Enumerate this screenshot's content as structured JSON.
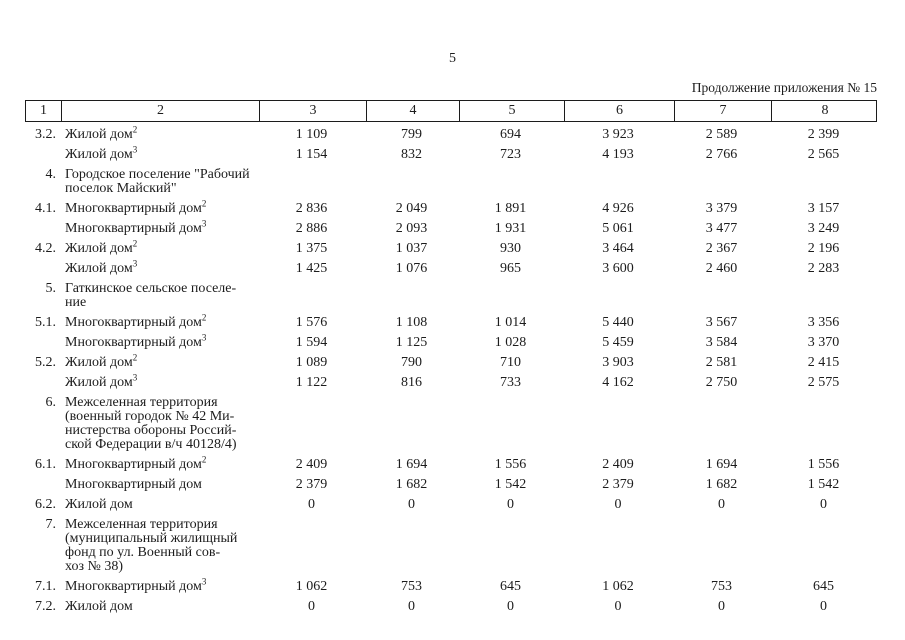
{
  "page": {
    "number": "5",
    "continuation_label": "Продолжение приложения № 15"
  },
  "table": {
    "header_columns": [
      "1",
      "2",
      "3",
      "4",
      "5",
      "6",
      "7",
      "8"
    ],
    "rows": [
      {
        "num": "3.2.",
        "label": "Жилой дом",
        "sup": "2",
        "values": [
          "1 109",
          "799",
          "694",
          "3 923",
          "2 589",
          "2 399"
        ]
      },
      {
        "num": "",
        "label": "Жилой дом",
        "sup": "3",
        "values": [
          "1 154",
          "832",
          "723",
          "4 193",
          "2 766",
          "2 565"
        ]
      },
      {
        "num": "4.",
        "label": "Городское поселение \"Рабочий\nпоселок Майский\"",
        "sup": "",
        "values": []
      },
      {
        "num": "4.1.",
        "label": "Многоквартирный дом",
        "sup": "2",
        "values": [
          "2 836",
          "2 049",
          "1 891",
          "4 926",
          "3 379",
          "3 157"
        ]
      },
      {
        "num": "",
        "label": "Многоквартирный дом",
        "sup": "3",
        "values": [
          "2 886",
          "2 093",
          "1 931",
          "5 061",
          "3 477",
          "3 249"
        ]
      },
      {
        "num": "4.2.",
        "label": "Жилой дом",
        "sup": "2",
        "values": [
          "1 375",
          "1 037",
          "930",
          "3 464",
          "2 367",
          "2 196"
        ]
      },
      {
        "num": "",
        "label": "Жилой дом",
        "sup": "3",
        "values": [
          "1 425",
          "1 076",
          "965",
          "3 600",
          "2 460",
          "2 283"
        ]
      },
      {
        "num": "5.",
        "label": "Гаткинское сельское поселе-\nние",
        "sup": "",
        "values": []
      },
      {
        "num": "5.1.",
        "label": "Многоквартирный дом",
        "sup": "2",
        "values": [
          "1 576",
          "1 108",
          "1 014",
          "5 440",
          "3 567",
          "3 356"
        ]
      },
      {
        "num": "",
        "label": "Многоквартирный дом",
        "sup": "3",
        "values": [
          "1 594",
          "1 125",
          "1 028",
          "5 459",
          "3 584",
          "3 370"
        ]
      },
      {
        "num": "5.2.",
        "label": "Жилой дом",
        "sup": "2",
        "values": [
          "1 089",
          "790",
          "710",
          "3 903",
          "2 581",
          "2 415"
        ]
      },
      {
        "num": "",
        "label": "Жилой дом",
        "sup": "3",
        "values": [
          "1 122",
          "816",
          "733",
          "4 162",
          "2 750",
          "2 575"
        ]
      },
      {
        "num": "6.",
        "label": "Межселенная территория\n(военный городок № 42 Ми-\nнистерства обороны Россий-\nской Федерации в/ч 40128/4)",
        "sup": "",
        "values": []
      },
      {
        "num": "6.1.",
        "label": "Многоквартирный дом",
        "sup": "2",
        "values": [
          "2 409",
          "1 694",
          "1 556",
          "2 409",
          "1 694",
          "1 556"
        ]
      },
      {
        "num": "",
        "label": "Многоквартирный дом",
        "sup": "",
        "values": [
          "2 379",
          "1 682",
          "1 542",
          "2 379",
          "1 682",
          "1 542"
        ]
      },
      {
        "num": "6.2.",
        "label": "Жилой дом",
        "sup": "",
        "values": [
          "0",
          "0",
          "0",
          "0",
          "0",
          "0"
        ]
      },
      {
        "num": "7.",
        "label": "Межселенная территория\n(муниципальный жилищный\nфонд по ул. Военный сов-\nхоз № 38)",
        "sup": "",
        "values": []
      },
      {
        "num": "7.1.",
        "label": "Многоквартирный дом",
        "sup": "3",
        "values": [
          "1 062",
          "753",
          "645",
          "1 062",
          "753",
          "645"
        ]
      },
      {
        "num": "7.2.",
        "label": "Жилой дом",
        "sup": "",
        "values": [
          "0",
          "0",
          "0",
          "0",
          "0",
          "0"
        ]
      }
    ]
  }
}
